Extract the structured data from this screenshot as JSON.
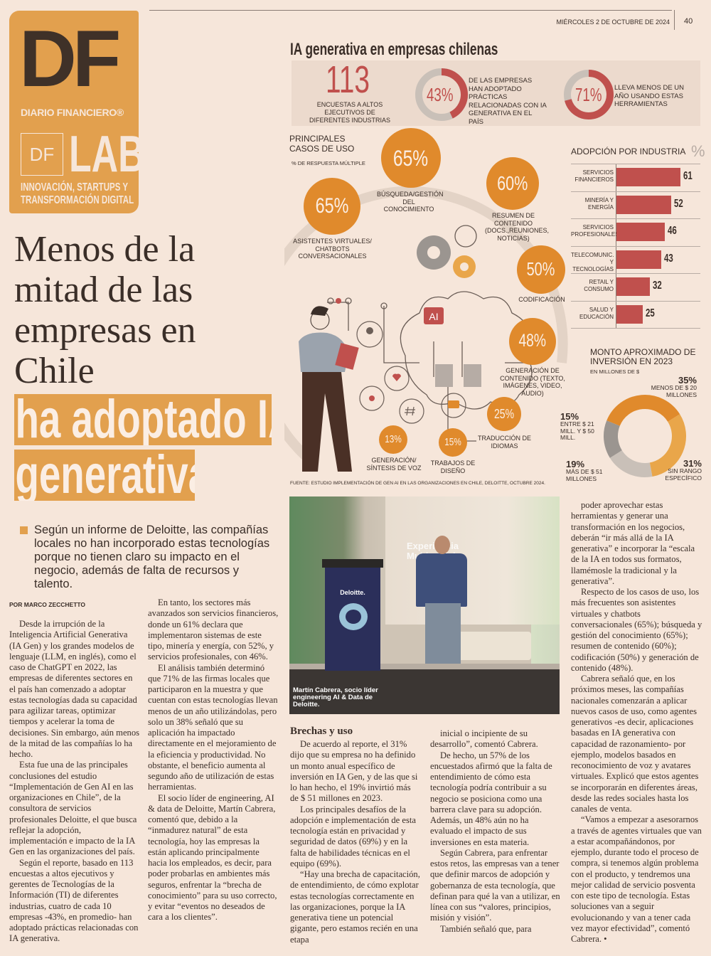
{
  "header": {
    "date": "MIÉRCOLES 2 DE OCTUBRE DE 2024",
    "page": "40"
  },
  "logo": {
    "brand": "DF",
    "brand_name": "DIARIO FINANCIERO®",
    "section_box": "DF",
    "section": "LAB",
    "tagline": [
      "INNOVACIÓN, STARTUPS Y",
      "TRANSFORMACIÓN DIGITAL"
    ]
  },
  "article": {
    "headline": [
      "Menos de la",
      "mitad de las",
      "empresas en",
      "Chile"
    ],
    "headline_highlight": [
      "ha adoptado IA",
      "generativa"
    ],
    "lead": "Según un informe de Deloitte, las compañías locales no han incorporado estas tecnologías porque no tienen claro su impacto en el negocio, además de falta de recursos y talento.",
    "byline": "POR MARCO ZECCHETTO",
    "col1": [
      "Desde la irrupción de la Inteligencia Artificial Generativa (IA Gen) y los grandes modelos de lenguaje (LLM, en inglés), como el caso de ChatGPT en 2022, las empresas de diferentes sectores en el país han comenzado a adoptar estas tecnologías dada su capacidad para agilizar tareas, optimizar tiempos y acelerar la toma de decisiones. Sin embargo, aún menos de la mitad de las compañías lo ha hecho.",
      "Esta fue una de las principales conclusiones del estudio “Implementación de Gen AI en las organizaciones en Chile”, de la consultora de servicios profesionales Deloitte, el que busca reflejar la adopción, implementación e impacto de la IA Gen en las organizaciones del país.",
      "Según el reporte, basado en 113 encuestas a altos ejecutivos y gerentes de Tecnologías de la Información (TI) de diferentes industrias, cuatro de cada 10 empresas -43%, en promedio- han adoptado prácticas relacionadas con IA generativa."
    ],
    "col2": [
      "En tanto, los sectores más avanzados son servicios financieros, donde un 61% declara que implementaron sistemas de este tipo, minería y energía, con 52%, y servicios profesionales, con 46%.",
      "El análisis también determinó que 71% de las firmas locales que participaron en la muestra y que cuentan con estas tecnologías llevan menos de un año utilizándolas, pero solo un 38% señaló que su aplicación ha impactado directamente en el mejoramiento de la eficiencia y productividad. No obstante, el beneficio aumenta al segundo año de utilización de estas herramientas.",
      "El socio líder de engineering, AI & data de Deloitte, Martín Cabrera, comentó que, debido a la “inmadurez natural” de esta tecnología, hoy las empresas la están aplicando principalmente hacia los empleados, es decir, para poder probarlas en ambientes más seguros, enfrentar la “brecha de conocimiento” para su uso correcto, y evitar “eventos no deseados de cara a los clientes”."
    ],
    "subhead": "Brechas y uso",
    "col3": [
      "De acuerdo al reporte, el 31% dijo que su empresa no ha definido un monto anual específico de inversión en IA Gen, y de las que si lo han hecho, el 19% invirtió más de $ 51 millones en 2023.",
      "Los principales desafíos de la adopción e implementación de esta tecnología están en privacidad y seguridad de datos (69%) y en la falta de habilidades técnicas en el equipo (69%).",
      "“Hay una brecha de capacitación, de entendimiento, de cómo explotar estas tecnologías correctamente en las organizaciones, porque la IA generativa tiene un potencial gigante, pero estamos recién en una etapa"
    ],
    "col4": [
      "inicial o incipiente de su desarrollo”, comentó Cabrera.",
      "De hecho, un 57% de los encuestados afirmó que la falta de entendimiento de cómo esta tecnología podría contribuir a su negocio se posiciona como una barrera clave para su adopción. Además, un 48% aún no ha evaluado el impacto de sus inversiones en esta materia.",
      "Según Cabrera, para enfrentar estos retos, las empresas van a tener que definir marcos de adopción y gobernanza de esta tecnología, que definan para qué la van a utilizar, en línea con sus “valores, principios, misión y visión”.",
      "También señaló que, para"
    ],
    "col5": [
      "poder aprovechar estas herramientas y generar una transformación en los negocios, deberán “ir más allá de la IA generativa” e incorporar la “escala de la IA en todos sus formatos, llamémosle la tradicional y la generativa”.",
      "Respecto de los casos de uso, los más frecuentes son asistentes virtuales y chatbots conversacionales (65%); búsqueda y gestión del conocimiento (65%); resumen de contenido (60%); codificación (50%) y generación de contenido (48%).",
      "Cabrera señaló que, en los próximos meses, las compañías nacionales comenzarán a aplicar nuevos casos de uso, como agentes generativos -es decir, aplicaciones basadas en IA generativa con capacidad de razonamiento- por ejemplo, modelos basados en reconocimiento de voz y avatares virtuales. Explicó que estos agentes se incorporarán en diferentes áreas, desde las redes sociales hasta los canales de venta.",
      "“Vamos a empezar a asesorarnos a través de agentes virtuales que van a estar acompañándonos, por ejemplo, durante todo el proceso de compra, si tenemos algún problema con el producto, y tendremos una mejor calidad de servicio posventa con este tipo de tecnología. Estas soluciones van a seguir evolucionando y van a tener cada vez mayor efectividad”, comentó Cabrera. •"
    ]
  },
  "photo": {
    "caption": "Martín Cabrera, socio líder engineering AI & Data de Deloitte.",
    "podium_brand": "Deloitte.",
    "screen_text": "Experiencia Multimodal"
  },
  "infographic": {
    "title": "IA generativa en empresas chilenas",
    "colors": {
      "red": "#c0504d",
      "orange": "#e08a2c",
      "light_orange": "#e9a64a",
      "grey": "#c9c0b8",
      "dark_grey": "#9b9590"
    },
    "stats": [
      {
        "value": "113",
        "label": "ENCUESTAS A ALTOS EJECUTIVOS DE DIFERENTES INDUSTRIAS"
      },
      {
        "value": "43%",
        "percent": 43,
        "label": "DE LAS EMPRESAS HAN ADOPTADO PRÁCTICAS RELACIONADAS CON IA GENERATIVA EN EL PAÍS"
      },
      {
        "value": "71%",
        "percent": 71,
        "label": "LLEVA MENOS DE UN AÑO USANDO ESTAS HERRAMIENTAS"
      }
    ],
    "use_cases": {
      "title": "PRINCIPALES CASOS DE USO",
      "subtitle": "% DE RESPUESTA MÚLTIPLE",
      "items": [
        {
          "value": 65,
          "label": "BÚSQUEDA/GESTIÓN DEL CONOCIMIENTO"
        },
        {
          "value": 65,
          "label": "ASISTENTES VIRTUALES/ CHATBOTS CONVERSACIONALES"
        },
        {
          "value": 60,
          "label": "RESUMEN DE CONTENIDO (DOCS.,REUNIONES, NOTICIAS)"
        },
        {
          "value": 50,
          "label": "CODIFICACIÓN"
        },
        {
          "value": 48,
          "label": "GENERACIÓN DE CONTENIDO (TEXTO, IMÁGENES, VIDEO, AUDIO)"
        },
        {
          "value": 25,
          "label": "TRADUCCIÓN DE IDIOMAS"
        },
        {
          "value": 15,
          "label": "TRABAJOS DE DISEÑO"
        },
        {
          "value": 13,
          "label": "GENERACIÓN/ SÍNTESIS DE VOZ"
        }
      ]
    },
    "ai_label": "AI",
    "source": "FUENTE: ESTUDIO IMPLEMENTACIÓN DE GEN AI EN LAS ORGANIZACIONES EN CHILE, DELOITTE, OCTUBRE 2024."
  },
  "chart_data": [
    {
      "type": "bar",
      "orientation": "horizontal",
      "title": "ADOPCIÓN POR INDUSTRIA",
      "unit": "%",
      "categories": [
        "SERVICIOS FINANCIEROS",
        "MINERÍA Y ENERGÍA",
        "SERVICIOS PROFESIONALES",
        "TELECOMUNIC. Y TECNOLOGÍAS",
        "RETAIL Y CONSUMO",
        "SALUD Y EDUCACIÓN"
      ],
      "values": [
        61,
        52,
        46,
        43,
        32,
        25
      ],
      "color": "#c0504d"
    },
    {
      "type": "pie",
      "style": "donut",
      "title": "MONTO APROXIMADO DE INVERSIÓN EN 2023",
      "subtitle": "EN MILLONES DE $",
      "slices": [
        {
          "value": 35,
          "label": "35%",
          "desc": "MENOS DE $ 20 MILLONES",
          "color": "#e08a2c"
        },
        {
          "value": 31,
          "label": "31%",
          "desc": "SIN RANGO ESPECÍFICO",
          "color": "#e9a64a"
        },
        {
          "value": 19,
          "label": "19%",
          "desc": "MÁS DE $ 51 MILLONES",
          "color": "#c9c0b8"
        },
        {
          "value": 15,
          "label": "15%",
          "desc": "ENTRE $ 21 MILL. Y $ 50 MILL.",
          "color": "#9b9590"
        }
      ]
    }
  ]
}
